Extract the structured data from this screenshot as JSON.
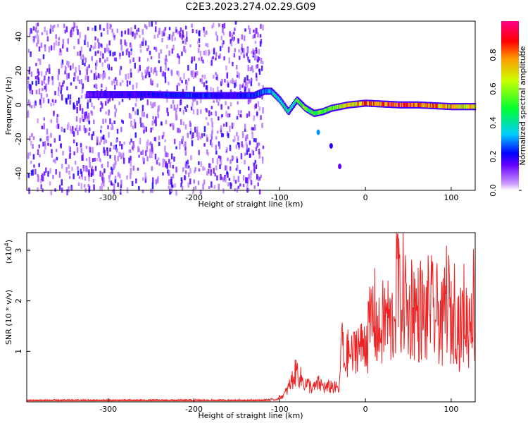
{
  "title": "C2E3.2023.274.02.29.G09",
  "chart_data": [
    {
      "type": "heatmap",
      "xlabel": "Height of straight line (km)",
      "ylabel": "Frequency (Hz)",
      "xlim": [
        -395,
        128
      ],
      "ylim": [
        -50,
        49
      ],
      "xticks": [
        -300,
        -200,
        -100,
        0,
        100
      ],
      "yticks": [
        -40,
        -20,
        0,
        20,
        40
      ],
      "colorbar": {
        "label": "Normalized spectral amplitude",
        "range": [
          0,
          1
        ],
        "ticks": [
          "0.0",
          "0.2",
          "0.4",
          "0.6",
          "0.8"
        ],
        "tick_values": [
          0.0,
          0.2,
          0.4,
          0.6,
          0.8
        ]
      },
      "noise_region": {
        "x_range": [
          -395,
          -120
        ],
        "approx_level": 0.05
      },
      "ridge": {
        "x": [
          -325,
          -300,
          -250,
          -200,
          -160,
          -130,
          -118,
          -110,
          -100,
          -90,
          -80,
          -70,
          -60,
          -50,
          -40,
          -30,
          -20,
          0,
          20,
          40,
          60,
          80,
          100,
          128
        ],
        "y": [
          6,
          6,
          6,
          5.5,
          5.5,
          5.5,
          8,
          8,
          3,
          -4,
          3,
          -2,
          -5,
          -4,
          -2,
          -1,
          0,
          1,
          0.5,
          0,
          0,
          -0.5,
          -1,
          -1
        ],
        "level": [
          0.15,
          0.18,
          0.2,
          0.25,
          0.2,
          0.25,
          0.3,
          0.35,
          0.4,
          0.45,
          0.5,
          0.55,
          0.5,
          0.55,
          0.6,
          0.65,
          0.7,
          0.8,
          0.85,
          0.9,
          0.85,
          0.8,
          0.75,
          0.7
        ]
      },
      "isolated_points": [
        {
          "x": -55,
          "y": -16,
          "level": 0.2
        },
        {
          "x": -40,
          "y": -24,
          "level": 0.1
        },
        {
          "x": -30,
          "y": -36,
          "level": 0.05
        }
      ],
      "colors": [
        "#ffffff",
        "#9933ff",
        "#3300ff",
        "#00ccff",
        "#00ff00",
        "#ffff00",
        "#ff0000",
        "#ff0099"
      ]
    },
    {
      "type": "line",
      "xlabel": "Height of straight line (km)",
      "ylabel": "SNR (10 * v/v)",
      "y_multiplier_label": "(x10",
      "y_multiplier_exp": "4",
      "y_multiplier_close": ")",
      "xlim": [
        -395,
        128
      ],
      "ylim": [
        0,
        3.35
      ],
      "xticks": [
        -300,
        -200,
        -100,
        0,
        100
      ],
      "yticks": [
        1,
        2,
        3
      ],
      "color": "#ee2222",
      "series": [
        {
          "x": [
            -395,
            -120,
            -105,
            -95,
            -90,
            -85,
            -80,
            -75,
            -70,
            -65,
            -60,
            -55,
            -50,
            -45,
            -40,
            -35,
            -30,
            -28,
            -25,
            -20,
            -15,
            -10,
            -5,
            0,
            5,
            10,
            15,
            20,
            25,
            30,
            35,
            37,
            40,
            45,
            50,
            55,
            60,
            65,
            70,
            75,
            80,
            85,
            90,
            95,
            100,
            105,
            110,
            115,
            120,
            125,
            128
          ],
          "values": [
            0.02,
            0.02,
            0.05,
            0.15,
            0.3,
            0.5,
            0.7,
            0.5,
            0.4,
            0.35,
            0.3,
            0.4,
            0.35,
            0.3,
            0.35,
            0.3,
            0.3,
            1.65,
            0.8,
            1.1,
            1.0,
            1.3,
            1.2,
            1.4,
            1.7,
            2.1,
            1.5,
            1.8,
            2.0,
            1.7,
            2.3,
            3.3,
            2.2,
            2.6,
            1.9,
            2.4,
            2.0,
            2.2,
            1.8,
            2.4,
            1.9,
            2.1,
            1.7,
            2.6,
            1.8,
            2.3,
            1.6,
            2.1,
            1.7,
            2.6,
            1.8
          ]
        }
      ]
    }
  ]
}
